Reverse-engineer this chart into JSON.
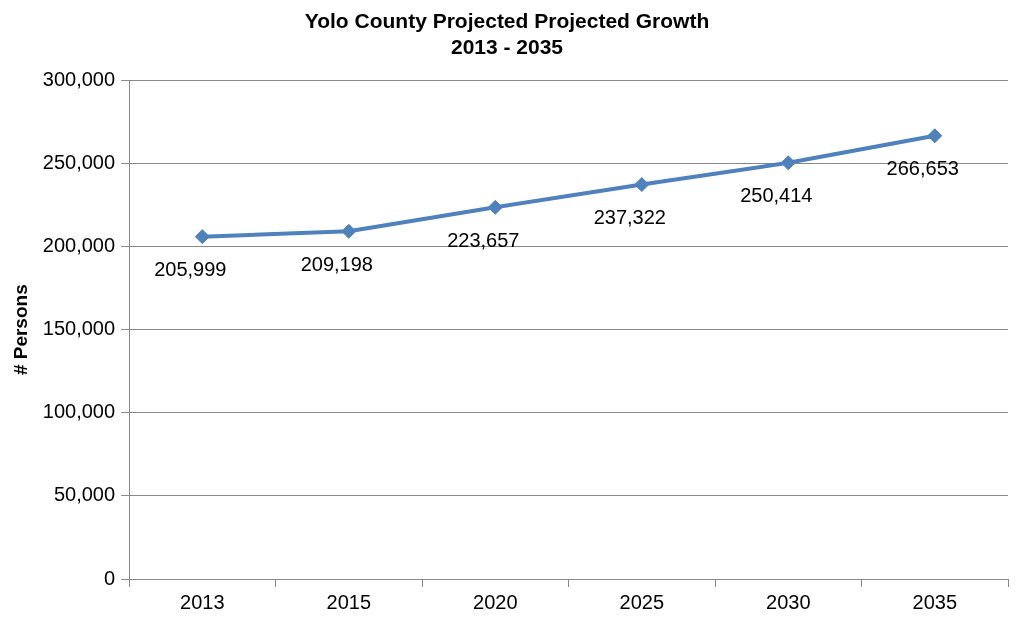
{
  "chart_data": {
    "type": "line",
    "title": "Yolo County Projected Projected Growth\n2013 - 2035",
    "ylabel": "# Persons",
    "categories": [
      "2013",
      "2015",
      "2020",
      "2025",
      "2030",
      "2035"
    ],
    "series": [
      {
        "color": "#4f81bd",
        "values": [
          205999,
          209198,
          223657,
          237322,
          250414,
          266653
        ],
        "value_labels": [
          "205,999",
          "209,198",
          "223,657",
          "237,322",
          "250,414",
          "266,653"
        ]
      }
    ],
    "ylim": [
      0,
      300000
    ],
    "yticks": [
      0,
      {
        "value": 50000,
        "label": "50,000"
      },
      {
        "value": 100000,
        "label": "100,000"
      },
      {
        "value": 150000,
        "label": "150,000"
      },
      {
        "value": 200000,
        "label": "200,000"
      },
      {
        "value": 250000,
        "label": "250,000"
      },
      {
        "value": 300000,
        "label": "300,000"
      }
    ],
    "grid": "y",
    "legend": false,
    "marker": "diamond",
    "line_style": "solid"
  }
}
